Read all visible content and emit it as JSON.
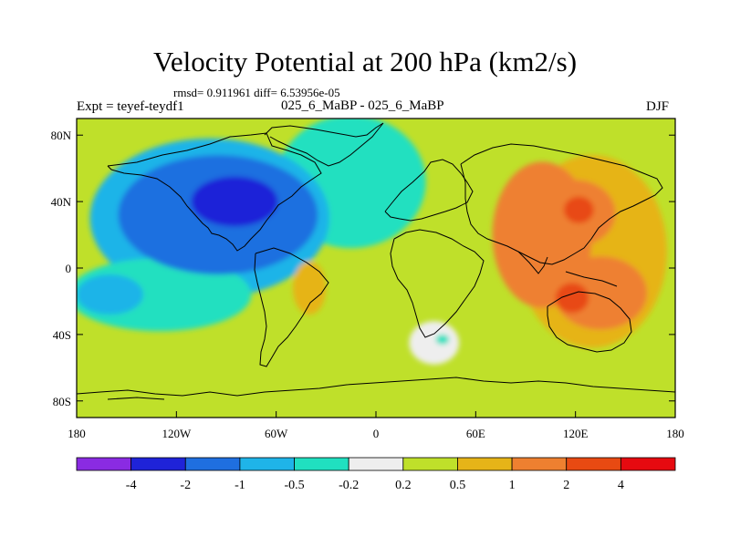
{
  "header": {
    "title": "Velocity Potential at 200 hPa (km2/s)",
    "stats": "rmsd= 0.911961 diff= 6.53956e-05",
    "expt": "Expt = teyef-teydf1",
    "cases": "025_6_MaBP - 025_6_MaBP",
    "season": "DJF"
  },
  "chart_data": {
    "type": "heatmap",
    "title": "Velocity Potential at 200 hPa (km2/s)",
    "xlabel": "",
    "ylabel": "",
    "xlim": [
      -180,
      180
    ],
    "ylim": [
      -90,
      90
    ],
    "x_ticks": [
      {
        "value": -180,
        "label": "180"
      },
      {
        "value": -120,
        "label": "120W"
      },
      {
        "value": -60,
        "label": "60W"
      },
      {
        "value": 0,
        "label": "0"
      },
      {
        "value": 60,
        "label": "60E"
      },
      {
        "value": 120,
        "label": "120E"
      },
      {
        "value": 180,
        "label": "180"
      }
    ],
    "y_ticks": [
      {
        "value": 80,
        "label": "80N"
      },
      {
        "value": 40,
        "label": "40N"
      },
      {
        "value": 0,
        "label": "0"
      },
      {
        "value": -40,
        "label": "40S"
      },
      {
        "value": -80,
        "label": "80S"
      }
    ],
    "colorbar": {
      "colors": [
        "#8a2be2",
        "#1f23d8",
        "#1f6fe0",
        "#1fb4e8",
        "#20e0c0",
        "#eeeeee",
        "#bfe02a",
        "#e6b418",
        "#ee8030",
        "#e84a12",
        "#e60a10"
      ],
      "labels": [
        "-4",
        "-2",
        "-1",
        "-0.5",
        "-0.2",
        "0.2",
        "0.5",
        "1",
        "2",
        "4"
      ]
    },
    "field": [
      {
        "lon": -15,
        "lat": 52,
        "level": 4,
        "sx": 45,
        "sy": 40
      },
      {
        "lon": -100,
        "lat": 30,
        "level": 3,
        "sx": 72,
        "sy": 48
      },
      {
        "lon": -130,
        "lat": -16,
        "level": 4,
        "sx": 55,
        "sy": 22
      },
      {
        "lon": -95,
        "lat": 32,
        "level": 2,
        "sx": 60,
        "sy": 36
      },
      {
        "lon": -160,
        "lat": -16,
        "level": 3,
        "sx": 20,
        "sy": 12
      },
      {
        "lon": -85,
        "lat": 40,
        "level": 1,
        "sx": 26,
        "sy": 15
      },
      {
        "lon": -40,
        "lat": -12,
        "level": 7,
        "sx": 10,
        "sy": 16
      },
      {
        "lon": 130,
        "lat": 10,
        "level": 7,
        "sx": 45,
        "sy": 58
      },
      {
        "lon": 100,
        "lat": 20,
        "level": 8,
        "sx": 30,
        "sy": 44
      },
      {
        "lon": 135,
        "lat": -15,
        "level": 8,
        "sx": 28,
        "sy": 22
      },
      {
        "lon": 120,
        "lat": 33,
        "level": 8,
        "sx": 24,
        "sy": 20
      },
      {
        "lon": 122,
        "lat": 35,
        "level": 9,
        "sx": 9,
        "sy": 8
      },
      {
        "lon": 118,
        "lat": -18,
        "level": 9,
        "sx": 10,
        "sy": 9
      },
      {
        "lon": 35,
        "lat": -45,
        "level": 5,
        "sx": 15,
        "sy": 13
      },
      {
        "lon": 40,
        "lat": -43,
        "level": 4,
        "sx": 4,
        "sy": 3
      }
    ]
  }
}
